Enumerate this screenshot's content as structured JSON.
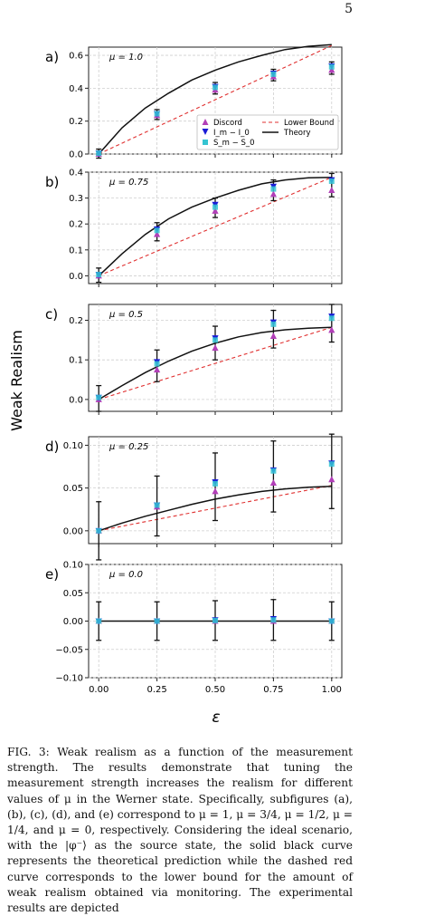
{
  "page": {
    "number": "5"
  },
  "figure": {
    "y_shared_label": "Weak Realism",
    "x_shared_label": "ε",
    "legend": {
      "entries": [
        "Discord",
        "I_m − I_0",
        "S_m − S_0",
        "Lower Bound",
        "Theory"
      ],
      "placement": "lower-right of panel a"
    },
    "colors": {
      "discord": "#b23fb8",
      "info": "#1a1ad6",
      "entropy": "#35c4d1",
      "lower_bound": "#e03030",
      "theory": "#111111"
    }
  },
  "chart_data": [
    {
      "type": "scatter",
      "panel": "a)",
      "mu_label": "μ = 1.0",
      "x": [
        0.0,
        0.25,
        0.5,
        0.75,
        1.0
      ],
      "xlim": [
        0.0,
        1.0
      ],
      "ylim": [
        0.0,
        0.65
      ],
      "yticks": [
        "0.0",
        "0.2",
        "0.4",
        "0.6"
      ],
      "series": [
        {
          "name": "Discord",
          "values": [
            0.0,
            0.235,
            0.39,
            0.47,
            0.51
          ],
          "err": [
            0.025,
            0.025,
            0.025,
            0.025,
            0.025
          ]
        },
        {
          "name": "I_m − I_0",
          "values": [
            0.005,
            0.245,
            0.41,
            0.49,
            0.535
          ],
          "err": [
            0.025,
            0.025,
            0.025,
            0.025,
            0.025
          ]
        },
        {
          "name": "S_m − S_0",
          "values": [
            0.005,
            0.245,
            0.405,
            0.485,
            0.53
          ],
          "err": [
            0.025,
            0.025,
            0.025,
            0.025,
            0.025
          ]
        },
        {
          "name": "Lower Bound",
          "type": "line",
          "x": [
            0.0,
            1.0
          ],
          "values": [
            0.0,
            0.66
          ]
        },
        {
          "name": "Theory",
          "type": "line",
          "x": [
            0.0,
            0.1,
            0.2,
            0.3,
            0.4,
            0.5,
            0.6,
            0.7,
            0.8,
            0.9,
            1.0
          ],
          "values": [
            0.0,
            0.16,
            0.28,
            0.37,
            0.45,
            0.51,
            0.56,
            0.6,
            0.635,
            0.655,
            0.665
          ]
        }
      ]
    },
    {
      "type": "scatter",
      "panel": "b)",
      "mu_label": "μ = 0.75",
      "x": [
        0.0,
        0.25,
        0.5,
        0.75,
        1.0
      ],
      "xlim": [
        0.0,
        1.0
      ],
      "ylim": [
        -0.03,
        0.4
      ],
      "yticks": [
        "0.0",
        "0.1",
        "0.2",
        "0.3",
        "0.4"
      ],
      "series": [
        {
          "name": "Discord",
          "values": [
            0.0,
            0.16,
            0.25,
            0.315,
            0.33
          ],
          "err": [
            0.025,
            0.025,
            0.025,
            0.025,
            0.025
          ]
        },
        {
          "name": "I_m − I_0",
          "values": [
            0.005,
            0.18,
            0.275,
            0.345,
            0.37
          ],
          "err": [
            0.025,
            0.025,
            0.025,
            0.025,
            0.025
          ]
        },
        {
          "name": "S_m − S_0",
          "values": [
            0.005,
            0.175,
            0.265,
            0.335,
            0.365
          ],
          "err": [
            0.025,
            0.025,
            0.025,
            0.025,
            0.025
          ]
        },
        {
          "name": "Lower Bound",
          "type": "line",
          "x": [
            0.0,
            1.0
          ],
          "values": [
            0.0,
            0.38
          ]
        },
        {
          "name": "Theory",
          "type": "line",
          "x": [
            0.0,
            0.1,
            0.2,
            0.3,
            0.4,
            0.5,
            0.6,
            0.7,
            0.8,
            0.9,
            1.0
          ],
          "values": [
            0.0,
            0.085,
            0.16,
            0.22,
            0.265,
            0.3,
            0.33,
            0.355,
            0.37,
            0.378,
            0.38
          ]
        }
      ]
    },
    {
      "type": "scatter",
      "panel": "c)",
      "mu_label": "μ = 0.5",
      "x": [
        0.0,
        0.25,
        0.5,
        0.75,
        1.0
      ],
      "xlim": [
        0.0,
        1.0
      ],
      "ylim": [
        -0.03,
        0.24
      ],
      "yticks": [
        "0.0",
        "0.1",
        "0.2"
      ],
      "series": [
        {
          "name": "Discord",
          "values": [
            0.0,
            0.075,
            0.13,
            0.16,
            0.175
          ],
          "err": [
            0.03,
            0.03,
            0.03,
            0.03,
            0.03
          ]
        },
        {
          "name": "I_m − I_0",
          "values": [
            0.005,
            0.095,
            0.155,
            0.195,
            0.21
          ],
          "err": [
            0.03,
            0.03,
            0.03,
            0.03,
            0.03
          ]
        },
        {
          "name": "S_m − S_0",
          "values": [
            0.005,
            0.09,
            0.15,
            0.19,
            0.205
          ],
          "err": [
            0.03,
            0.03,
            0.03,
            0.03,
            0.03
          ]
        },
        {
          "name": "Lower Bound",
          "type": "line",
          "x": [
            0.0,
            1.0
          ],
          "values": [
            0.0,
            0.182
          ]
        },
        {
          "name": "Theory",
          "type": "line",
          "x": [
            0.0,
            0.1,
            0.2,
            0.3,
            0.4,
            0.5,
            0.6,
            0.7,
            0.8,
            0.9,
            1.0
          ],
          "values": [
            0.0,
            0.035,
            0.068,
            0.097,
            0.122,
            0.142,
            0.158,
            0.169,
            0.176,
            0.18,
            0.182
          ]
        }
      ]
    },
    {
      "type": "scatter",
      "panel": "d)",
      "mu_label": "μ = 0.25",
      "x": [
        0.0,
        0.25,
        0.5,
        0.75,
        1.0
      ],
      "xlim": [
        0.0,
        1.0
      ],
      "ylim": [
        -0.015,
        0.11
      ],
      "yticks": [
        "0.00",
        "0.05",
        "0.10"
      ],
      "series": [
        {
          "name": "Discord",
          "values": [
            0.0,
            0.028,
            0.046,
            0.056,
            0.06
          ],
          "err": [
            0.034,
            0.034,
            0.034,
            0.034,
            0.034
          ]
        },
        {
          "name": "I_m − I_0",
          "values": [
            0.0,
            0.03,
            0.057,
            0.071,
            0.079
          ],
          "err": [
            0.034,
            0.034,
            0.034,
            0.034,
            0.034
          ]
        },
        {
          "name": "S_m − S_0",
          "values": [
            0.0,
            0.03,
            0.055,
            0.07,
            0.078
          ],
          "err": [
            0.034,
            0.034,
            0.034,
            0.034,
            0.034
          ]
        },
        {
          "name": "Lower Bound",
          "type": "line",
          "x": [
            0.0,
            1.0
          ],
          "values": [
            0.0,
            0.053
          ]
        },
        {
          "name": "Theory",
          "type": "line",
          "x": [
            0.0,
            0.1,
            0.2,
            0.3,
            0.4,
            0.5,
            0.6,
            0.7,
            0.8,
            0.9,
            1.0
          ],
          "values": [
            0.0,
            0.009,
            0.017,
            0.024,
            0.031,
            0.037,
            0.042,
            0.046,
            0.049,
            0.051,
            0.052
          ]
        }
      ]
    },
    {
      "type": "scatter",
      "panel": "e)",
      "mu_label": "μ = 0.0",
      "x": [
        0.0,
        0.25,
        0.5,
        0.75,
        1.0
      ],
      "xlim": [
        0.0,
        1.0
      ],
      "ylim": [
        -0.1,
        0.1
      ],
      "yticks": [
        "−0.10",
        "−0.05",
        "0.00",
        "0.05",
        "0.10"
      ],
      "xticks": [
        "0.00",
        "0.25",
        "0.50",
        "0.75",
        "1.00"
      ],
      "series": [
        {
          "name": "Discord",
          "values": [
            0.0,
            0.0,
            0.0,
            0.0,
            0.0
          ],
          "err": [
            0.034,
            0.034,
            0.034,
            0.034,
            0.034
          ]
        },
        {
          "name": "I_m − I_0",
          "values": [
            0.0,
            0.0,
            0.002,
            0.004,
            0.0
          ],
          "err": [
            0.034,
            0.034,
            0.034,
            0.034,
            0.034
          ]
        },
        {
          "name": "S_m − S_0",
          "values": [
            0.0,
            0.0,
            0.001,
            0.002,
            0.0
          ],
          "err": [
            0.034,
            0.034,
            0.034,
            0.034,
            0.034
          ]
        },
        {
          "name": "Lower Bound",
          "type": "line",
          "x": [
            0.0,
            1.0
          ],
          "values": [
            0.0,
            0.0
          ]
        },
        {
          "name": "Theory",
          "type": "line",
          "x": [
            0.0,
            1.0
          ],
          "values": [
            0.0,
            0.0
          ]
        }
      ]
    }
  ],
  "caption": "FIG. 3: Weak realism as a function of the measurement strength. The results demonstrate that tuning the measurement strength increases the realism for different values of μ in the Werner state. Specifically, subfigures (a), (b), (c), (d), and (e) correspond to μ = 1, μ = 3/4, μ = 1/2, μ = 1/4, and μ = 0, respectively. Considering the ideal scenario, with the |φ⁻⟩ as the source state, the solid black curve represents the theoretical prediction while the dashed red curve corresponds to the lower bound for the amount of weak realism obtained via monitoring. The experimental results are depicted"
}
